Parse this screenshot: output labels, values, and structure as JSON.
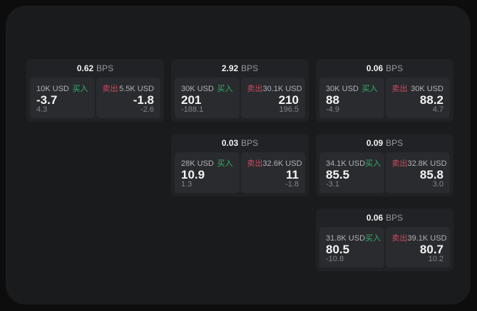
{
  "labels": {
    "bps_unit": "BPS",
    "buy": "买入",
    "sell": "卖出"
  },
  "theme": {
    "outer_bg": "#0d0d0e",
    "panel_bg": "#1a1b1c",
    "card_bg": "#212225",
    "tile_bg": "#2a2b2e",
    "buy_green": "#2fb36a",
    "sell_red": "#c94a62"
  },
  "cards": [
    {
      "bps": "0.62",
      "buy": {
        "size": "10K USD",
        "price": "-3.7",
        "delta": "4.3"
      },
      "sell": {
        "size": "5.5K USD",
        "price": "-1.8",
        "delta": "-2.6"
      }
    },
    {
      "bps": "2.92",
      "buy": {
        "size": "30K USD",
        "price": "201",
        "delta": "-188.1"
      },
      "sell": {
        "size": "30.1K USD",
        "price": "210",
        "delta": "196.5"
      }
    },
    {
      "bps": "0.06",
      "buy": {
        "size": "30K USD",
        "price": "88",
        "delta": "-4.9"
      },
      "sell": {
        "size": "30K USD",
        "price": "88.2",
        "delta": "4.7"
      }
    },
    {
      "bps": "0.03",
      "buy": {
        "size": "28K USD",
        "price": "10.9",
        "delta": "1.3"
      },
      "sell": {
        "size": "32.6K USD",
        "price": "11",
        "delta": "-1.8"
      }
    },
    {
      "bps": "0.09",
      "buy": {
        "size": "34.1K USD",
        "price": "85.5",
        "delta": "-3.1"
      },
      "sell": {
        "size": "32.8K USD",
        "price": "85.8",
        "delta": "3.0"
      }
    },
    {
      "bps": "0.06",
      "buy": {
        "size": "31.8K USD",
        "price": "80.5",
        "delta": "-10.8"
      },
      "sell": {
        "size": "39.1K USD",
        "price": "80.7",
        "delta": "10.2"
      }
    }
  ]
}
